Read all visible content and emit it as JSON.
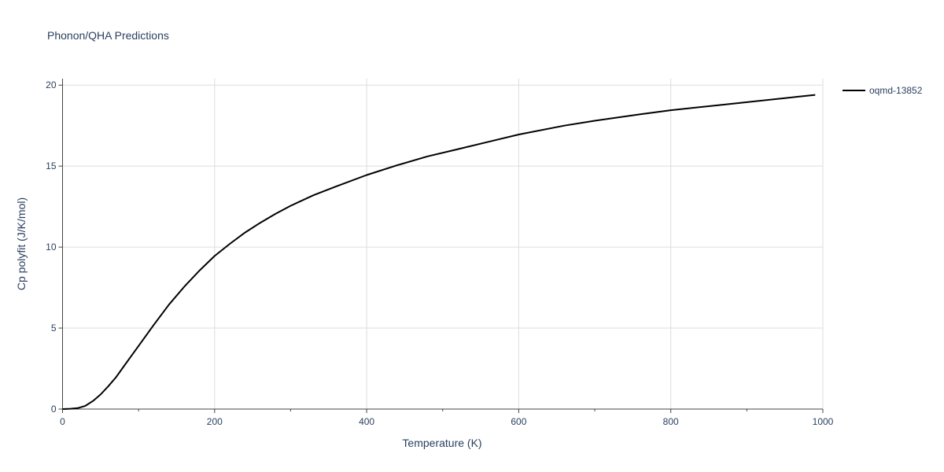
{
  "chart_data": {
    "type": "line",
    "title": "Phonon/QHA Predictions",
    "xlabel": "Temperature (K)",
    "ylabel": "Cp polyfit (J/K/mol)",
    "xlim": [
      0,
      1000
    ],
    "ylim": [
      0,
      20.4
    ],
    "x_ticks": [
      0,
      200,
      400,
      600,
      800,
      1000
    ],
    "x_tick_labels": [
      "0",
      "200",
      "400",
      "600",
      "800",
      "1000"
    ],
    "y_ticks": [
      0,
      5,
      10,
      15,
      20
    ],
    "y_tick_labels": [
      "0",
      "5",
      "10",
      "15",
      "20"
    ],
    "grid": true,
    "legend_position": "top-right",
    "series": [
      {
        "name": "oqmd-13852",
        "color": "#000000",
        "x": [
          0,
          10,
          20,
          30,
          40,
          50,
          60,
          70,
          80,
          90,
          100,
          120,
          140,
          160,
          180,
          200,
          220,
          240,
          260,
          280,
          300,
          330,
          360,
          400,
          440,
          480,
          520,
          560,
          600,
          660,
          700,
          760,
          800,
          860,
          900,
          950,
          990
        ],
        "y": [
          0,
          0.02,
          0.06,
          0.2,
          0.5,
          0.9,
          1.4,
          1.95,
          2.6,
          3.25,
          3.9,
          5.2,
          6.45,
          7.55,
          8.55,
          9.45,
          10.2,
          10.9,
          11.5,
          12.05,
          12.55,
          13.2,
          13.75,
          14.45,
          15.05,
          15.6,
          16.05,
          16.5,
          16.95,
          17.5,
          17.8,
          18.2,
          18.45,
          18.75,
          18.95,
          19.2,
          19.4
        ]
      }
    ]
  }
}
